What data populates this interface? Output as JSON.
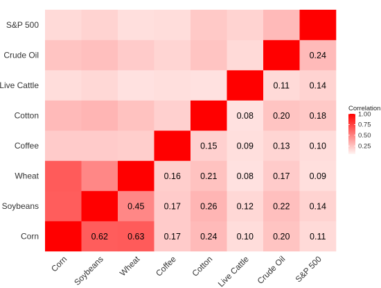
{
  "chart_data": {
    "type": "heatmap",
    "variables": [
      "Corn",
      "Soybeans",
      "Wheat",
      "Coffee",
      "Cotton",
      "Live Cattle",
      "Crude Oil",
      "S&P 500"
    ],
    "matrix": [
      [
        1.0,
        0.62,
        0.63,
        0.17,
        0.24,
        0.1,
        0.2,
        0.11
      ],
      [
        0.62,
        1.0,
        0.45,
        0.17,
        0.26,
        0.12,
        0.22,
        0.14
      ],
      [
        0.63,
        0.45,
        1.0,
        0.16,
        0.21,
        0.08,
        0.17,
        0.09
      ],
      [
        0.17,
        0.17,
        0.16,
        1.0,
        0.15,
        0.09,
        0.13,
        0.1
      ],
      [
        0.24,
        0.26,
        0.21,
        0.15,
        1.0,
        0.08,
        0.2,
        0.18
      ],
      [
        0.1,
        0.12,
        0.08,
        0.09,
        0.08,
        1.0,
        0.11,
        0.14
      ],
      [
        0.2,
        0.22,
        0.17,
        0.13,
        0.2,
        0.11,
        1.0,
        0.24
      ],
      [
        0.11,
        0.14,
        0.09,
        0.1,
        0.18,
        0.14,
        0.24,
        1.0
      ]
    ],
    "labels_shown": "lower-triangle",
    "legend": {
      "title": "Correlation",
      "ticks": [
        1.0,
        0.75,
        0.5,
        0.25
      ],
      "tick_labels": [
        "1.00",
        "0.75",
        "0.50",
        "0.25"
      ],
      "color_low": "#fff5f3",
      "color_high": "#ff0000",
      "placement": "right"
    },
    "grid": true
  }
}
